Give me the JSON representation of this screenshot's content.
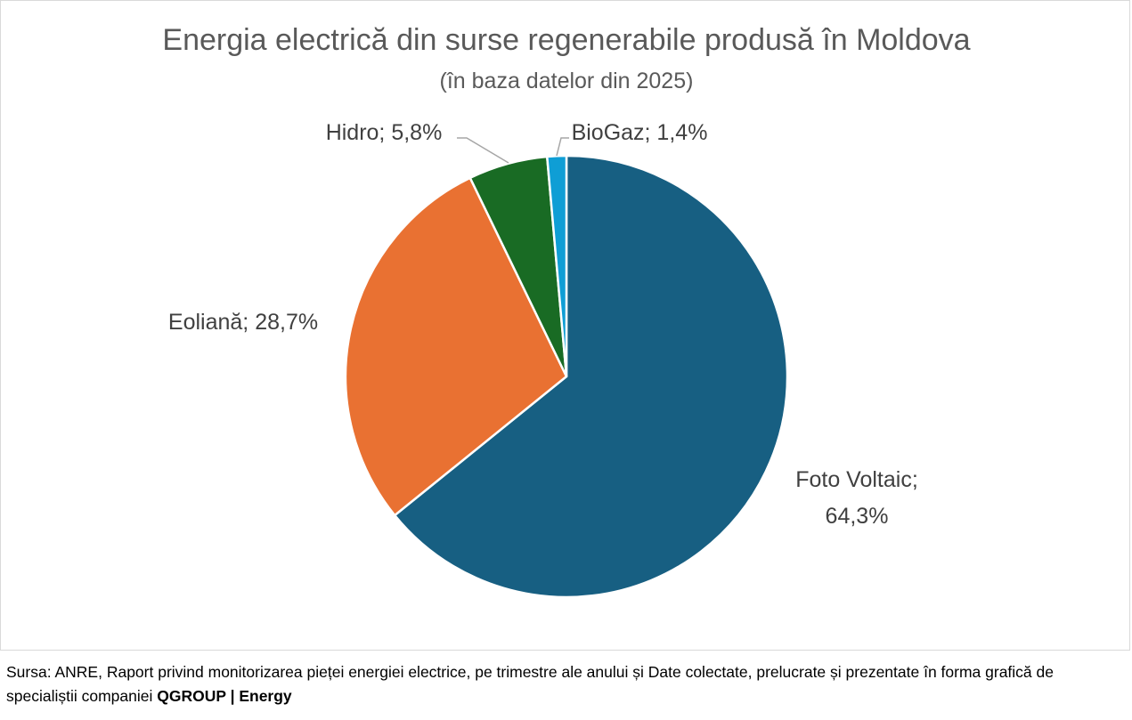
{
  "chart_data": {
    "type": "pie",
    "title": "Energia electrică din surse regenerabile produsă în Moldova",
    "subtitle": "(în baza datelor din 2025)",
    "start_angle_deg": 0,
    "direction": "clockwise",
    "slices": [
      {
        "name": "Foto Voltaic",
        "value": 64.3,
        "label_line1": "Foto Voltaic;",
        "label_line2": "64,3%",
        "color": "#175F82"
      },
      {
        "name": "Eoliană",
        "value": 28.7,
        "label_line1": "Eoliană; 28,7%",
        "label_line2": "",
        "color": "#E97132"
      },
      {
        "name": "Hidro",
        "value": 5.8,
        "label_line1": "Hidro; 5,8%",
        "label_line2": "",
        "color": "#196B24"
      },
      {
        "name": "BioGaz",
        "value": 1.4,
        "label_line1": "BioGaz; 1,4%",
        "label_line2": "",
        "color": "#0F9ED5"
      }
    ]
  },
  "footer": {
    "text": "Sursa: ANRE, Raport privind monitorizarea pieței energiei electrice, pe trimestre ale anului și Date colectate, prelucrate și prezentate în forma grafică de specialiștii companiei ",
    "brand": "QGROUP | Energy"
  }
}
